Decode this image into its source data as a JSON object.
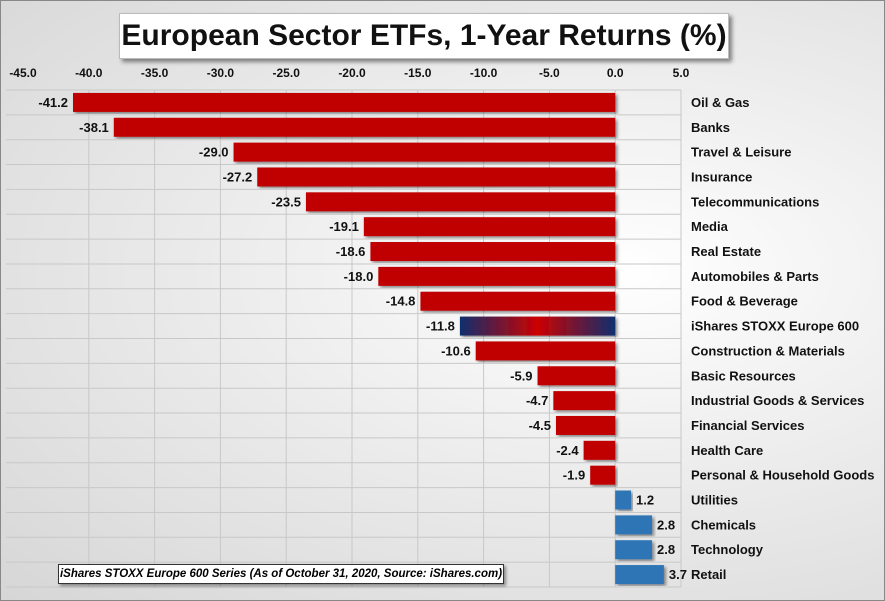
{
  "chart_data": {
    "type": "bar",
    "orientation": "horizontal",
    "title": "European Sector ETFs, 1-Year Returns (%)",
    "source_note": "iShares STOXX Europe 600 Series (As of October 31, 2020, Source: iShares.com)",
    "xlim": [
      -45,
      5
    ],
    "xticks": [
      "-45.0",
      "-40.0",
      "-35.0",
      "-30.0",
      "-25.0",
      "-20.0",
      "-15.0",
      "-10.0",
      "-5.0",
      "0.0",
      "5.0"
    ],
    "grid": true,
    "categories": [
      "Oil & Gas",
      "Banks",
      "Travel & Leisure",
      "Insurance",
      "Telecommunications",
      "Media",
      "Real Estate",
      "Automobiles & Parts",
      "Food & Beverage",
      "iShares STOXX Europe 600",
      "Construction & Materials",
      "Basic Resources",
      "Industrial Goods & Services",
      "Financial Services",
      "Health Care",
      "Personal & Household Goods",
      "Utilities",
      "Chemicals",
      "Technology",
      "Retail"
    ],
    "values": [
      -41.2,
      -38.1,
      -29.0,
      -27.2,
      -23.5,
      -19.1,
      -18.6,
      -18.0,
      -14.8,
      -11.8,
      -10.6,
      -5.9,
      -4.7,
      -4.5,
      -2.4,
      -1.9,
      1.2,
      2.8,
      2.8,
      3.7
    ],
    "colors": {
      "negative": "#c00000",
      "positive": "#2e75b6",
      "benchmark_edge": "#0f2f6e",
      "benchmark_center": "#cc0000"
    }
  }
}
